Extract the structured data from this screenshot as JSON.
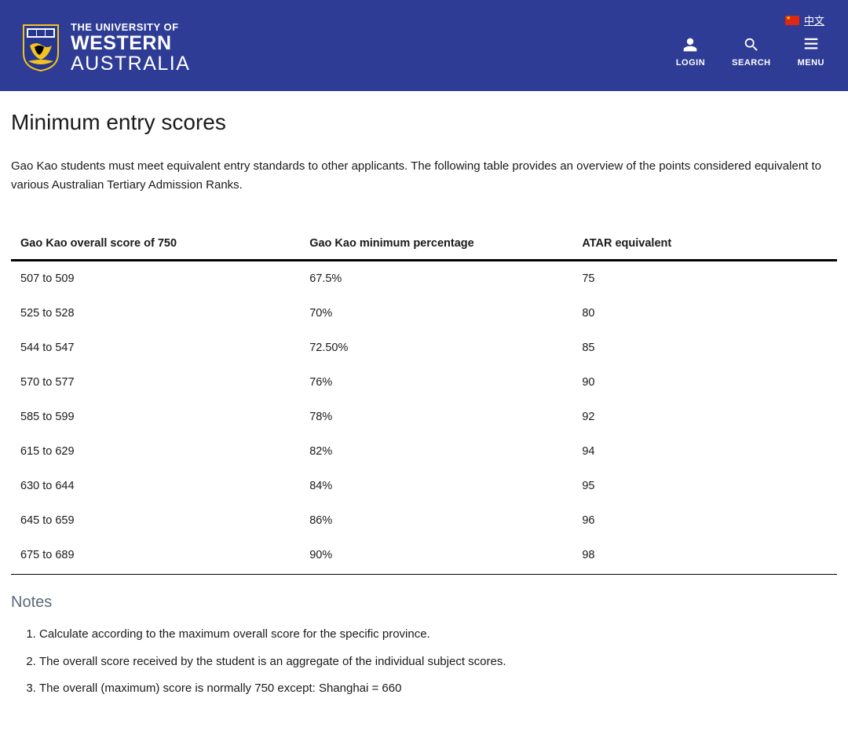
{
  "header": {
    "language_label": "中文",
    "logo_line1": "THE UNIVERSITY OF",
    "logo_line2": "WESTERN",
    "logo_line3": "AUSTRALIA",
    "actions": {
      "login": "LOGIN",
      "search": "SEARCH",
      "menu": "MENU"
    }
  },
  "page": {
    "title": "Minimum entry scores",
    "intro": "Gao Kao students must meet equivalent entry standards to other applicants. The following table provides an overview of the points considered equivalent to various Australian Tertiary Admission Ranks."
  },
  "table": {
    "columns": [
      "Gao Kao overall score of 750",
      "Gao Kao minimum percentage",
      "ATAR equivalent"
    ],
    "column_widths": [
      "35%",
      "33%",
      "32%"
    ],
    "rows": [
      [
        "507 to 509",
        "67.5%",
        "75"
      ],
      [
        "525 to 528",
        "70%",
        "80"
      ],
      [
        "544 to 547",
        "72.50%",
        "85"
      ],
      [
        "570 to 577",
        "76%",
        "90"
      ],
      [
        "585 to 599",
        "78%",
        "92"
      ],
      [
        "615 to 629",
        "82%",
        "94"
      ],
      [
        "630 to 644",
        "84%",
        "95"
      ],
      [
        "645 to 659",
        "86%",
        "96"
      ],
      [
        "675 to 689",
        "90%",
        "98"
      ]
    ]
  },
  "notes": {
    "heading": "Notes",
    "items": [
      "Calculate according to the maximum overall score for the specific province.",
      "The overall score received by the student is an aggregate of the individual subject scores.",
      "The overall (maximum) score is normally 750 except: Shanghai = 660"
    ]
  },
  "colors": {
    "header_bg": "#2e3c96",
    "crest_gold": "#f3c320",
    "crest_blue": "#27368f",
    "text": "#1a1a1a",
    "notes_heading": "#5a6a7a"
  }
}
